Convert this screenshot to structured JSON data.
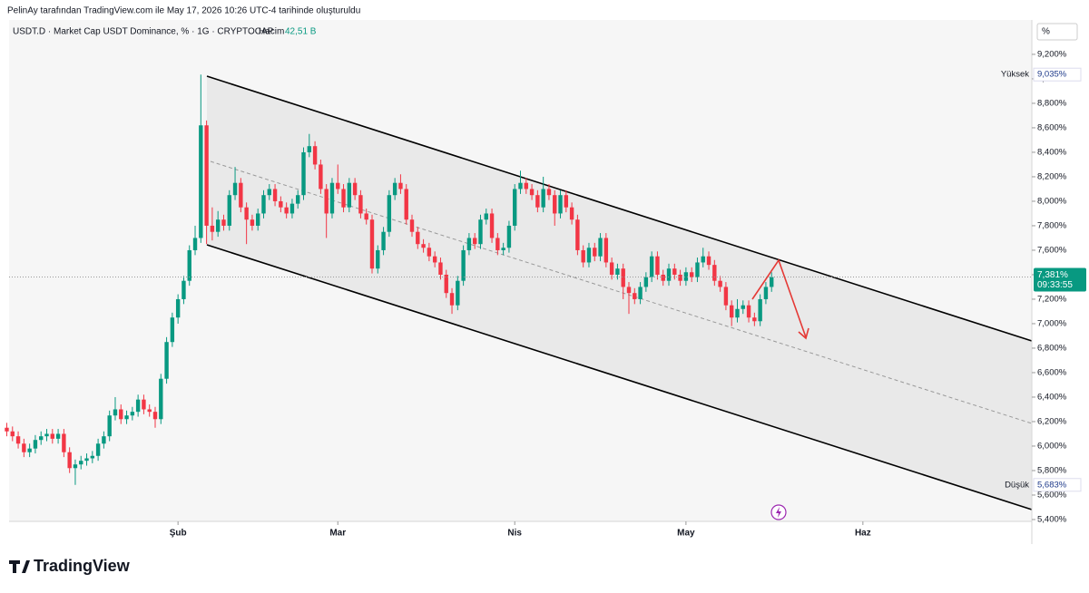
{
  "header": "PelinAy tarafından TradingView.com ile May 17, 2026 10:26 UTC-4 tarihinde oluşturuldu",
  "logo": "TradingView",
  "chart_data": {
    "type": "candlestick",
    "title": "USDT.D · Market Cap USDT Dominance, % · 1G · CRYPTOCAP",
    "volume_label": "Hacim",
    "volume": "42,51 B",
    "y_unit": "%",
    "up_color": "#089981",
    "down_color": "#f23645",
    "grid": false,
    "xlim": [
      0.4,
      179.6
    ],
    "xticks": [
      {
        "value": 30,
        "label": "Şub"
      },
      {
        "value": 58,
        "label": "Mar"
      },
      {
        "value": 89,
        "label": "Nis"
      },
      {
        "value": 119,
        "label": "May"
      },
      {
        "value": 150,
        "label": "Haz"
      }
    ],
    "ylim": [
      5.385,
      9.481
    ],
    "yticks": [
      {
        "value": 5.4,
        "label": "5,400%"
      },
      {
        "value": 5.6,
        "label": "5,600%"
      },
      {
        "value": 5.8,
        "label": "5,800%"
      },
      {
        "value": 6.0,
        "label": "6,000%"
      },
      {
        "value": 6.2,
        "label": "6,200%"
      },
      {
        "value": 6.4,
        "label": "6,400%"
      },
      {
        "value": 6.6,
        "label": "6,600%"
      },
      {
        "value": 6.8,
        "label": "6,800%"
      },
      {
        "value": 7.0,
        "label": "7,000%"
      },
      {
        "value": 7.2,
        "label": "7,200%"
      },
      {
        "value": 7.4,
        "label": "7,400%"
      },
      {
        "value": 7.6,
        "label": "7,600%"
      },
      {
        "value": 7.8,
        "label": "7,800%"
      },
      {
        "value": 8.0,
        "label": "8,000%"
      },
      {
        "value": 8.2,
        "label": "8,200%"
      },
      {
        "value": 8.4,
        "label": "8,400%"
      },
      {
        "value": 8.6,
        "label": "8,600%"
      },
      {
        "value": 8.8,
        "label": "8,800%"
      },
      {
        "value": 9.0,
        "label": "9,000%"
      },
      {
        "value": 9.2,
        "label": "9,200%"
      }
    ],
    "high_marker": {
      "name": "Yüksek",
      "value": 9.035,
      "label": "9,035%"
    },
    "low_marker": {
      "name": "Düşük",
      "value": 5.683,
      "label": "5,683%"
    },
    "last_price": {
      "value": 7.381,
      "label": "7,381%",
      "countdown": "09:33:55"
    },
    "x": [
      0,
      1,
      2,
      3,
      4,
      5,
      6,
      7,
      8,
      9,
      10,
      11,
      12,
      13,
      14,
      15,
      16,
      17,
      18,
      19,
      20,
      21,
      22,
      23,
      24,
      25,
      26,
      27,
      28,
      29,
      30,
      31,
      32,
      33,
      34,
      35,
      36,
      37,
      38,
      39,
      40,
      41,
      42,
      43,
      44,
      45,
      46,
      47,
      48,
      49,
      50,
      51,
      52,
      53,
      54,
      55,
      56,
      57,
      58,
      59,
      60,
      61,
      62,
      63,
      64,
      65,
      66,
      67,
      68,
      69,
      70,
      71,
      72,
      73,
      74,
      75,
      76,
      77,
      78,
      79,
      80,
      81,
      82,
      83,
      84,
      85,
      86,
      87,
      88,
      89,
      90,
      91,
      92,
      93,
      94,
      95,
      96,
      97,
      98,
      99,
      100,
      101,
      102,
      103,
      104,
      105,
      106,
      107,
      108,
      109,
      110,
      111,
      112,
      113,
      114,
      115,
      116,
      117,
      118,
      119,
      120,
      121,
      122,
      123,
      124,
      125,
      126,
      127,
      128,
      129,
      130,
      131,
      132,
      133,
      134
    ],
    "open": [
      6.15,
      6.12,
      6.08,
      6.02,
      5.95,
      5.98,
      6.05,
      6.08,
      6.1,
      6.06,
      6.1,
      5.95,
      5.82,
      5.85,
      5.88,
      5.9,
      5.92,
      6.02,
      6.08,
      6.25,
      6.3,
      6.22,
      6.25,
      6.28,
      6.38,
      6.3,
      6.28,
      6.22,
      6.55,
      6.85,
      7.05,
      7.2,
      7.35,
      7.6,
      7.7,
      8.62,
      7.8,
      7.75,
      7.85,
      7.8,
      8.05,
      8.15,
      7.95,
      7.85,
      7.8,
      7.9,
      8.05,
      8.1,
      8.0,
      7.95,
      7.9,
      7.98,
      8.05,
      8.4,
      8.45,
      8.3,
      8.1,
      7.9,
      8.15,
      8.1,
      7.95,
      8.15,
      8.05,
      7.9,
      7.85,
      7.45,
      7.6,
      7.75,
      8.05,
      8.15,
      8.1,
      7.85,
      7.75,
      7.65,
      7.62,
      7.55,
      7.5,
      7.4,
      7.25,
      7.15,
      7.35,
      7.6,
      7.7,
      7.65,
      7.85,
      7.9,
      7.7,
      7.6,
      7.62,
      7.8,
      8.1,
      8.15,
      8.1,
      8.05,
      7.95,
      8.1,
      8.05,
      7.9,
      8.05,
      7.95,
      7.85,
      7.6,
      7.5,
      7.62,
      7.55,
      7.7,
      7.5,
      7.4,
      7.45,
      7.3,
      7.25,
      7.2,
      7.3,
      7.38,
      7.55,
      7.4,
      7.35,
      7.45,
      7.4,
      7.35,
      7.42,
      7.38,
      7.5,
      7.55,
      7.48,
      7.35,
      7.3,
      7.15,
      7.05,
      7.12,
      7.15,
      7.05,
      7.02,
      7.2,
      7.3
    ],
    "high": [
      6.19,
      6.16,
      6.12,
      6.06,
      6.02,
      6.09,
      6.12,
      6.14,
      6.14,
      6.14,
      6.14,
      5.99,
      5.89,
      5.92,
      5.94,
      5.96,
      6.06,
      6.12,
      6.29,
      6.4,
      6.34,
      6.29,
      6.32,
      6.42,
      6.42,
      6.34,
      6.32,
      6.59,
      6.89,
      7.09,
      7.24,
      7.39,
      7.64,
      7.8,
      9.035,
      8.66,
      7.95,
      7.92,
      7.89,
      8.09,
      8.28,
      8.19,
      7.99,
      7.89,
      7.94,
      8.09,
      8.14,
      8.14,
      8.04,
      7.99,
      8.02,
      8.09,
      8.44,
      8.55,
      8.49,
      8.34,
      8.14,
      8.19,
      8.3,
      8.14,
      8.19,
      8.19,
      8.09,
      7.94,
      7.89,
      7.64,
      7.79,
      8.09,
      8.19,
      8.22,
      8.14,
      7.89,
      7.79,
      7.69,
      7.66,
      7.59,
      7.54,
      7.44,
      7.29,
      7.39,
      7.64,
      7.74,
      7.74,
      7.89,
      7.94,
      7.94,
      7.74,
      7.66,
      7.84,
      8.14,
      8.25,
      8.19,
      8.14,
      8.09,
      8.2,
      8.14,
      8.09,
      8.09,
      8.09,
      7.99,
      7.89,
      7.64,
      7.66,
      7.66,
      7.74,
      7.74,
      7.54,
      7.49,
      7.49,
      7.34,
      7.29,
      7.34,
      7.42,
      7.59,
      7.59,
      7.44,
      7.49,
      7.49,
      7.44,
      7.46,
      7.46,
      7.54,
      7.62,
      7.59,
      7.52,
      7.39,
      7.34,
      7.19,
      7.2,
      7.19,
      7.19,
      7.09,
      7.24,
      7.34,
      7.42
    ],
    "low": [
      6.08,
      6.04,
      5.98,
      5.91,
      5.91,
      5.94,
      6.01,
      6.04,
      6.02,
      6.02,
      5.91,
      5.78,
      5.683,
      5.81,
      5.84,
      5.86,
      5.88,
      5.98,
      6.04,
      6.21,
      6.18,
      6.18,
      6.21,
      6.24,
      6.26,
      6.24,
      6.15,
      6.18,
      6.51,
      6.81,
      7.0,
      7.16,
      7.31,
      7.56,
      7.66,
      7.65,
      7.68,
      7.71,
      7.76,
      7.76,
      8.01,
      7.91,
      7.65,
      7.76,
      7.76,
      7.86,
      8.01,
      7.96,
      7.91,
      7.86,
      7.86,
      7.94,
      8.01,
      8.36,
      8.26,
      8.06,
      7.7,
      7.86,
      8.06,
      7.91,
      7.91,
      8.01,
      7.86,
      7.81,
      7.41,
      7.41,
      7.56,
      7.71,
      8.01,
      8.06,
      7.81,
      7.71,
      7.61,
      7.58,
      7.51,
      7.46,
      7.36,
      7.21,
      7.08,
      7.11,
      7.31,
      7.56,
      7.61,
      7.61,
      7.81,
      7.66,
      7.56,
      7.56,
      7.58,
      7.76,
      8.06,
      8.06,
      8.01,
      7.91,
      7.91,
      8.01,
      7.8,
      7.86,
      7.91,
      7.81,
      7.56,
      7.46,
      7.46,
      7.51,
      7.51,
      7.46,
      7.36,
      7.36,
      7.2,
      7.08,
      7.16,
      7.16,
      7.26,
      7.34,
      7.36,
      7.31,
      7.31,
      7.36,
      7.31,
      7.31,
      7.34,
      7.34,
      7.46,
      7.44,
      7.31,
      7.26,
      7.11,
      6.98,
      7.01,
      7.08,
      7.01,
      6.98,
      6.98,
      7.16,
      7.26
    ],
    "close": [
      6.12,
      6.08,
      6.02,
      5.95,
      5.98,
      6.05,
      6.08,
      6.1,
      6.06,
      6.1,
      5.95,
      5.82,
      5.85,
      5.88,
      5.9,
      5.92,
      6.02,
      6.08,
      6.25,
      6.3,
      6.22,
      6.25,
      6.28,
      6.38,
      6.3,
      6.28,
      6.22,
      6.55,
      6.85,
      7.05,
      7.2,
      7.35,
      7.6,
      7.7,
      8.62,
      7.8,
      7.75,
      7.85,
      7.8,
      8.05,
      8.15,
      7.95,
      7.85,
      7.8,
      7.9,
      8.05,
      8.1,
      8.0,
      7.95,
      7.9,
      7.98,
      8.05,
      8.4,
      8.45,
      8.3,
      8.1,
      7.9,
      8.15,
      8.1,
      7.95,
      8.15,
      8.05,
      7.9,
      7.85,
      7.45,
      7.6,
      7.75,
      8.05,
      8.15,
      8.1,
      7.85,
      7.75,
      7.65,
      7.62,
      7.55,
      7.5,
      7.4,
      7.25,
      7.15,
      7.35,
      7.6,
      7.7,
      7.65,
      7.85,
      7.9,
      7.7,
      7.6,
      7.62,
      7.8,
      8.1,
      8.15,
      8.1,
      8.05,
      7.95,
      8.1,
      8.05,
      7.9,
      8.05,
      7.95,
      7.85,
      7.6,
      7.5,
      7.62,
      7.55,
      7.7,
      7.5,
      7.4,
      7.45,
      7.3,
      7.25,
      7.2,
      7.3,
      7.38,
      7.55,
      7.4,
      7.35,
      7.45,
      7.4,
      7.35,
      7.42,
      7.38,
      7.5,
      7.55,
      7.48,
      7.35,
      7.3,
      7.15,
      7.05,
      7.12,
      7.15,
      7.05,
      7.02,
      7.2,
      7.3,
      7.381
    ]
  }
}
